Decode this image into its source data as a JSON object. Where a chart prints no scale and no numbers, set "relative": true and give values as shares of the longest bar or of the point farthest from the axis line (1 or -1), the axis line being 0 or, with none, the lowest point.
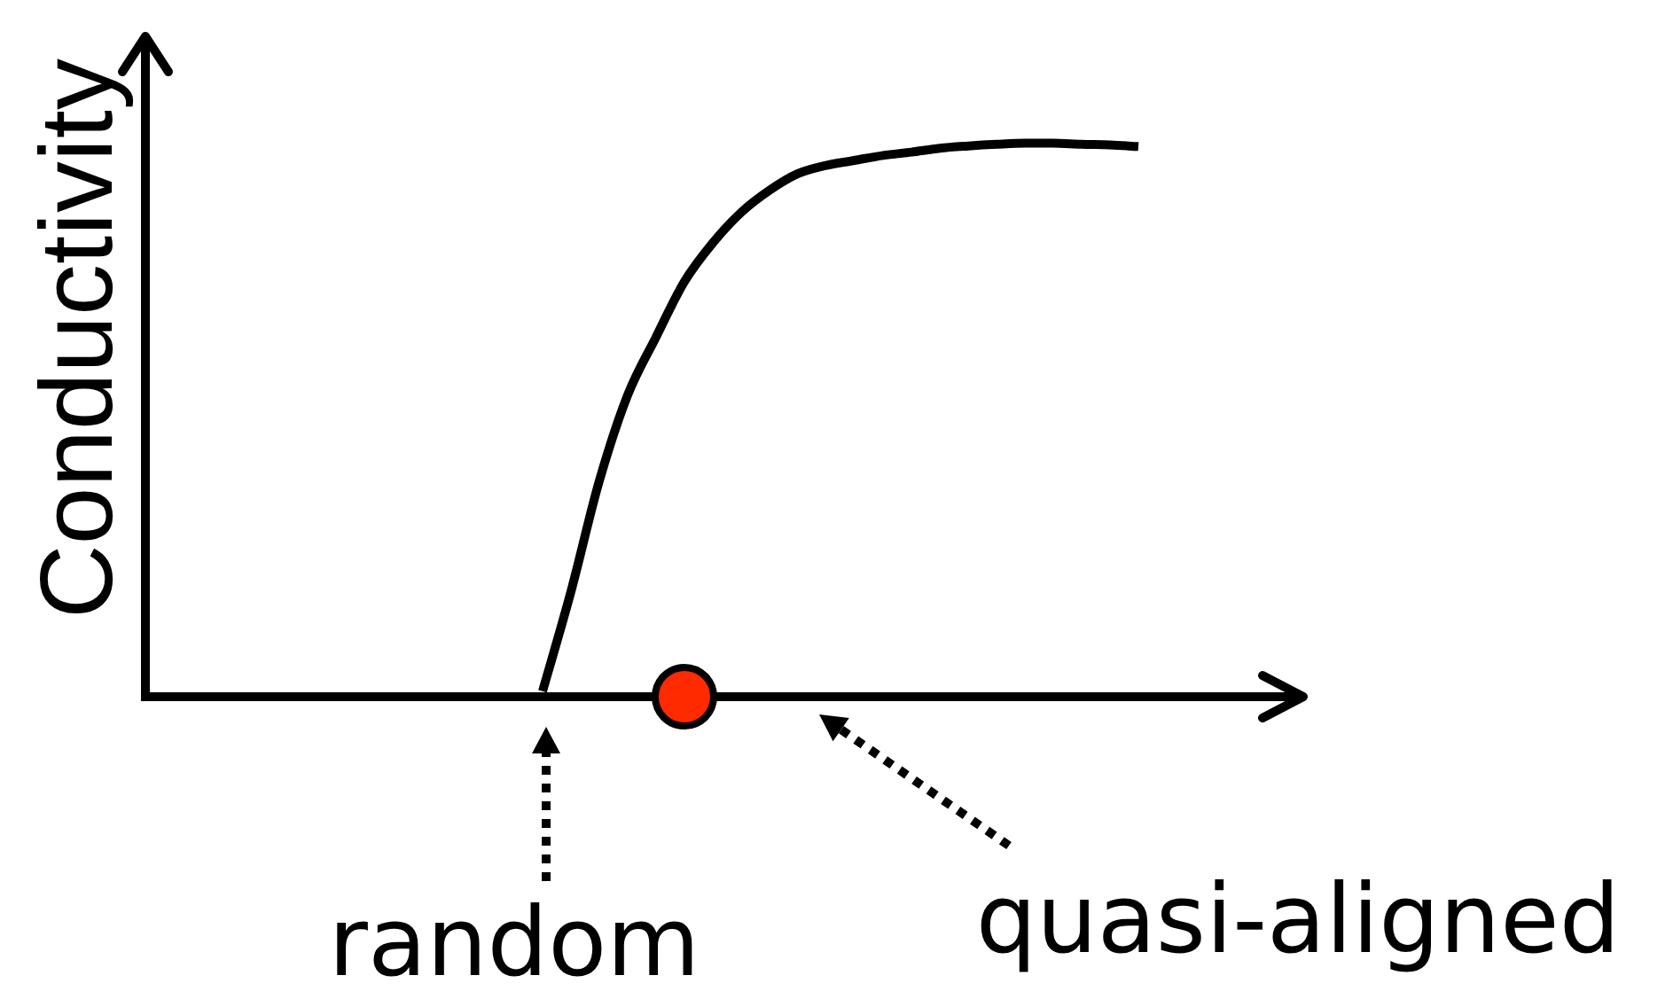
{
  "chart_data": {
    "type": "line",
    "ylabel": "Conductivity",
    "annotations": [
      "random",
      "quasi-aligned"
    ],
    "categories": [
      null,
      null,
      null,
      null,
      null,
      null,
      null,
      null,
      null,
      null,
      null,
      null,
      null,
      null,
      null,
      null,
      null,
      null,
      null,
      null,
      null,
      null,
      null,
      null,
      null,
      null,
      null,
      null,
      null,
      null,
      null,
      null,
      null,
      null,
      null,
      null,
      null,
      null,
      null,
      null,
      null
    ],
    "relative": true,
    "series": [
      {
        "color": "#000000",
        "marker": "none",
        "line_style": "solid",
        "values": [
          null,
          null,
          null,
          null,
          null,
          null,
          null,
          null,
          null,
          null,
          null,
          null,
          null,
          null,
          0.01,
          0.19,
          0.39,
          0.545,
          0.65,
          0.75,
          0.82,
          0.875,
          0.915,
          0.945,
          0.96,
          0.969,
          0.978,
          0.984,
          0.991,
          0.995,
          0.998,
          1.0,
          1.0,
          0.998,
          0.997,
          0.994,
          null,
          null,
          null,
          null,
          null
        ]
      },
      {
        "color": "#ff2a00",
        "marker": "circle",
        "values": [
          null,
          null,
          null,
          null,
          null,
          null,
          null,
          null,
          null,
          null,
          null,
          null,
          null,
          null,
          null,
          null,
          null,
          null,
          null,
          0,
          null,
          null,
          null,
          null,
          null,
          null,
          null,
          null,
          null,
          null,
          null,
          null,
          null,
          null,
          null,
          null,
          null,
          null,
          null,
          null,
          null
        ]
      }
    ],
    "grid": false,
    "legend": false,
    "tick_labels": false
  }
}
